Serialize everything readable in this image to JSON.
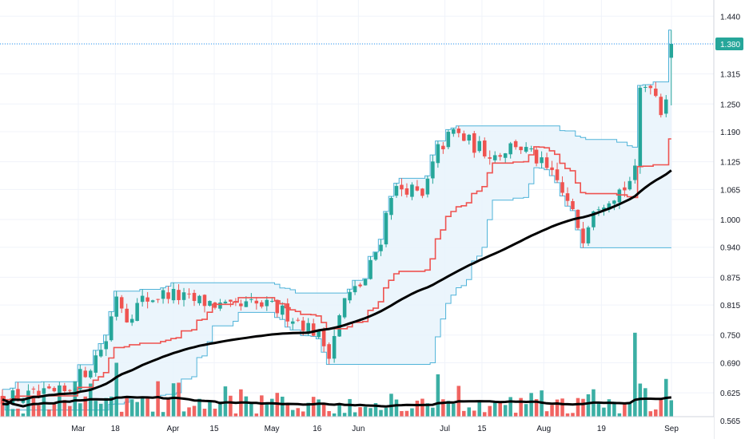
{
  "chart_data": {
    "type": "candlestick",
    "title": "",
    "price_axis": {
      "ticks": [
        "1.440",
        "1.380",
        "1.315",
        "1.250",
        "1.190",
        "1.125",
        "1.065",
        "1.000",
        "0.940",
        "0.875",
        "0.815",
        "0.750",
        "0.690",
        "0.625",
        "0.565"
      ],
      "ylim": [
        0.525,
        1.475
      ],
      "last_price": "1.380"
    },
    "time_axis": {
      "tick_labels": [
        "Mar",
        "18",
        "Apr",
        "15",
        "May",
        "16",
        "Jun",
        "Jul",
        "15",
        "Aug",
        "19",
        "Sep"
      ],
      "bar_count": 130
    },
    "colors": {
      "up": "#26a69a",
      "down": "#ef5350",
      "channel": "#4fb3d9",
      "channel_fill": "#e8f3fc",
      "mid_line": "#ef5350",
      "moving_average": "#000000",
      "volume_average": "#000000",
      "last_price_line": "#2196f3"
    },
    "legend": "none",
    "grid": true,
    "price_path": [
      [
        0,
        0.615
      ],
      [
        8,
        0.618
      ],
      [
        12,
        0.625
      ],
      [
        17,
        0.685
      ],
      [
        20,
        0.74
      ],
      [
        22,
        0.84
      ],
      [
        24,
        0.79
      ],
      [
        27,
        0.825
      ],
      [
        32,
        0.84
      ],
      [
        36,
        0.825
      ],
      [
        40,
        0.82
      ],
      [
        44,
        0.805
      ],
      [
        48,
        0.815
      ],
      [
        52,
        0.81
      ],
      [
        56,
        0.79
      ],
      [
        60,
        0.76
      ],
      [
        63,
        0.715
      ],
      [
        66,
        0.825
      ],
      [
        70,
        0.87
      ],
      [
        73,
        0.96
      ],
      [
        75,
        1.06
      ],
      [
        78,
        1.07
      ],
      [
        81,
        1.045
      ],
      [
        84,
        1.15
      ],
      [
        87,
        1.19
      ],
      [
        91,
        1.16
      ],
      [
        95,
        1.14
      ],
      [
        99,
        1.165
      ],
      [
        103,
        1.13
      ],
      [
        107,
        1.08
      ],
      [
        110,
        1.01
      ],
      [
        112,
        0.965
      ],
      [
        114,
        1.03
      ],
      [
        117,
        1.05
      ],
      [
        120,
        1.07
      ],
      [
        122,
        1.1
      ],
      [
        123,
        1.28
      ],
      [
        125,
        1.3
      ],
      [
        127,
        1.24
      ],
      [
        128,
        1.27
      ],
      [
        129,
        1.375
      ]
    ],
    "volume_path": [
      [
        0,
        0.58
      ],
      [
        10,
        0.63
      ],
      [
        18,
        0.63
      ],
      [
        21,
        0.56
      ],
      [
        23,
        0.63
      ],
      [
        24,
        0.575
      ],
      [
        28,
        0.59
      ],
      [
        33,
        0.575
      ],
      [
        38,
        0.585
      ],
      [
        45,
        0.57
      ],
      [
        52,
        0.58
      ],
      [
        60,
        0.578
      ],
      [
        64,
        0.65
      ],
      [
        66,
        0.6
      ],
      [
        70,
        0.575
      ],
      [
        73,
        0.605
      ],
      [
        76,
        0.63
      ],
      [
        80,
        0.6
      ],
      [
        84,
        0.655
      ],
      [
        87,
        0.6
      ],
      [
        90,
        0.61
      ],
      [
        94,
        0.585
      ],
      [
        98,
        0.6
      ],
      [
        102,
        0.585
      ],
      [
        106,
        0.585
      ],
      [
        110,
        0.6
      ],
      [
        115,
        0.585
      ],
      [
        120,
        0.58
      ],
      [
        122,
        0.75
      ],
      [
        123,
        0.635
      ],
      [
        125,
        0.6
      ],
      [
        127,
        0.565
      ],
      [
        128,
        0.655
      ],
      [
        129,
        0.57
      ]
    ],
    "spikes": {
      "17": 0.645,
      "22": 0.69,
      "84": 0.665,
      "88": 0.64,
      "122": 0.755,
      "123": 0.645,
      "124": 0.635,
      "128": 0.655
    }
  }
}
